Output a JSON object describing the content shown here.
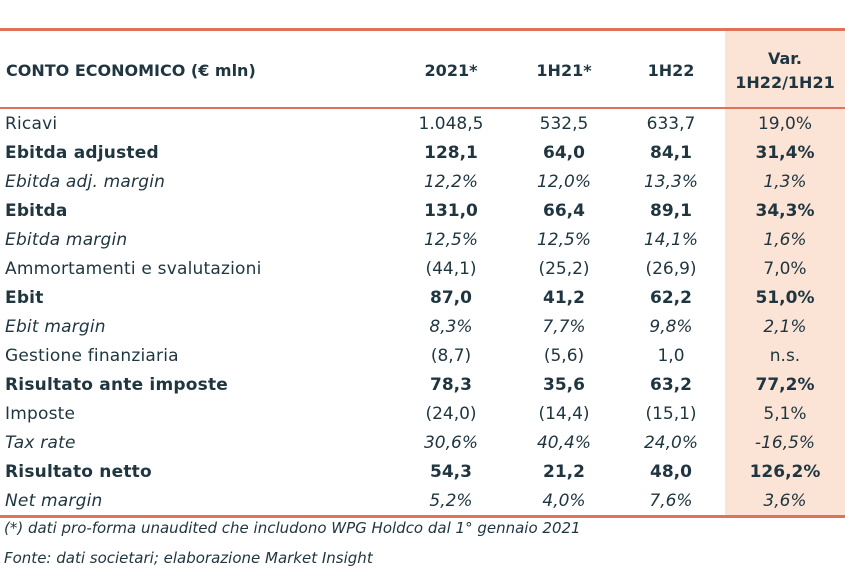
{
  "header": {
    "label": "CONTO ECONOMICO (€ mln)",
    "col1": "2021*",
    "col2": "1H21*",
    "col3": "1H22",
    "var_line1": "Var.",
    "var_line2": "1H22/1H21"
  },
  "rows": [
    {
      "label": "Ricavi",
      "v1": "1.048,5",
      "v2": "532,5",
      "v3": "633,7",
      "var": "19,0%",
      "style": "normal"
    },
    {
      "label": "Ebitda adjusted",
      "v1": "128,1",
      "v2": "64,0",
      "v3": "84,1",
      "var": "31,4%",
      "style": "bold"
    },
    {
      "label": "Ebitda adj. margin",
      "v1": "12,2%",
      "v2": "12,0%",
      "v3": "13,3%",
      "var": "1,3%",
      "style": "italic"
    },
    {
      "label": "Ebitda",
      "v1": "131,0",
      "v2": "66,4",
      "v3": "89,1",
      "var": "34,3%",
      "style": "bold"
    },
    {
      "label": "Ebitda margin",
      "v1": "12,5%",
      "v2": "12,5%",
      "v3": "14,1%",
      "var": "1,6%",
      "style": "italic"
    },
    {
      "label": "Ammortamenti e svalutazioni",
      "v1": "(44,1)",
      "v2": "(25,2)",
      "v3": "(26,9)",
      "var": "7,0%",
      "style": "normal"
    },
    {
      "label": "Ebit",
      "v1": "87,0",
      "v2": "41,2",
      "v3": "62,2",
      "var": "51,0%",
      "style": "bold"
    },
    {
      "label": "Ebit margin",
      "v1": "8,3%",
      "v2": "7,7%",
      "v3": "9,8%",
      "var": "2,1%",
      "style": "italic"
    },
    {
      "label": "Gestione finanziaria",
      "v1": "(8,7)",
      "v2": "(5,6)",
      "v3": "1,0",
      "var": "n.s.",
      "style": "normal"
    },
    {
      "label": "Risultato ante imposte",
      "v1": "78,3",
      "v2": "35,6",
      "v3": "63,2",
      "var": "77,2%",
      "style": "bold"
    },
    {
      "label": "Imposte",
      "v1": "(24,0)",
      "v2": "(14,4)",
      "v3": "(15,1)",
      "var": "5,1%",
      "style": "normal"
    },
    {
      "label": "Tax rate",
      "v1": "30,6%",
      "v2": "40,4%",
      "v3": "24,0%",
      "var": "-16,5%",
      "style": "italic"
    },
    {
      "label": "Risultato netto",
      "v1": "54,3",
      "v2": "21,2",
      "v3": "48,0",
      "var": "126,2%",
      "style": "bold"
    },
    {
      "label": "Net margin",
      "v1": "5,2%",
      "v2": "4,0%",
      "v3": "7,6%",
      "var": "3,6%",
      "style": "italic"
    }
  ],
  "notes": {
    "footnote": "(*) dati pro-forma unaudited che includono WPG Holdco dal 1° gennaio 2021",
    "source": "Fonte: dati societari; elaborazione Market Insight"
  },
  "colors": {
    "accent_line": "#e0715a",
    "var_column_bg": "#fbe4d6",
    "text": "#1f3540"
  }
}
